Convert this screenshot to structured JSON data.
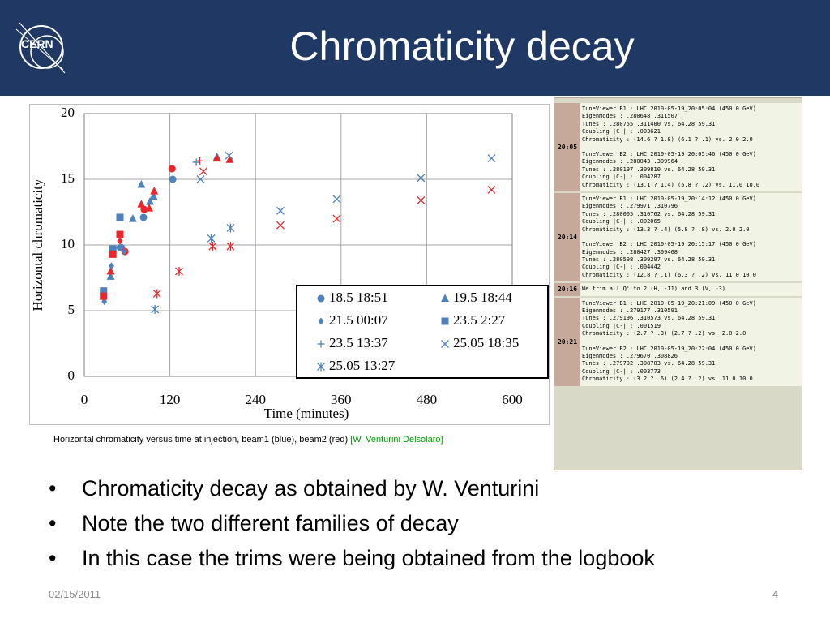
{
  "header": {
    "title": "Chromaticity decay",
    "logo_text": "CERN"
  },
  "chart_data": {
    "type": "scatter",
    "x_label": "Time (minutes)",
    "y_label": "Horizontal chromaticity",
    "xlim": [
      0,
      600
    ],
    "xticks": [
      0,
      120,
      240,
      360,
      480,
      600
    ],
    "ylim": [
      0,
      20
    ],
    "yticks": [
      0,
      5,
      10,
      15,
      20
    ],
    "grid": true,
    "series": [
      {
        "name": "18.5 18:51",
        "marker": "circle",
        "color": "#4f81bd",
        "x": [
          83,
          52,
          124,
          84,
          57,
          123
        ],
        "values": [
          12.1,
          9.8,
          15.0,
          12.7,
          9.5,
          15.8
        ],
        "colors": [
          "#4f81bd",
          "#4f81bd",
          "#4f81bd",
          "#e8262b",
          "#e8262b",
          "#e8262b"
        ]
      },
      {
        "name": "19.5 18:44",
        "marker": "triangle",
        "color": "#4f81bd",
        "x": [
          80,
          92,
          97,
          68,
          37,
          186,
          37,
          80,
          91,
          98,
          186,
          204
        ],
        "values": [
          14.6,
          13.3,
          13.7,
          12.0,
          7.6,
          16.7,
          8.0,
          13.1,
          12.8,
          14.1,
          16.6,
          16.5
        ],
        "colors": [
          "#4f81bd",
          "#4f81bd",
          "#4f81bd",
          "#4f81bd",
          "#4f81bd",
          "#4f81bd",
          "#e8262b",
          "#e8262b",
          "#e8262b",
          "#e8262b",
          "#e8262b",
          "#e8262b"
        ]
      },
      {
        "name": "21.5 00:07",
        "marker": "diamond",
        "color": "#4f81bd",
        "x": [
          28,
          38,
          48,
          56,
          50
        ],
        "values": [
          5.7,
          8.4,
          9.8,
          9.5,
          10.3
        ],
        "colors": [
          "#4f81bd",
          "#4f81bd",
          "#4f81bd",
          "#4f81bd",
          "#e8262b"
        ]
      },
      {
        "name": "23.5 2:27",
        "marker": "square",
        "color": "#4f81bd",
        "x": [
          27,
          40,
          50,
          27,
          40,
          50
        ],
        "values": [
          6.5,
          9.7,
          12.1,
          6.1,
          9.3,
          10.8
        ],
        "colors": [
          "#4f81bd",
          "#4f81bd",
          "#4f81bd",
          "#e8262b",
          "#e8262b",
          "#e8262b"
        ]
      },
      {
        "name": "23.5 13:37",
        "marker": "plus",
        "color": "#4f81bd",
        "x": [
          157,
          162
        ],
        "values": [
          16.3,
          16.4
        ],
        "colors": [
          "#4f81bd",
          "#e8262b"
        ]
      },
      {
        "name": "25.05 18:35",
        "marker": "x",
        "color": "#4f81bd",
        "x": [
          163,
          203,
          275,
          354,
          472,
          571,
          167,
          275,
          354,
          472,
          571
        ],
        "values": [
          15.0,
          16.8,
          12.6,
          13.5,
          15.1,
          16.6,
          15.6,
          11.5,
          12.0,
          13.4,
          14.2
        ],
        "colors": [
          "#4f81bd",
          "#4f81bd",
          "#4f81bd",
          "#4f81bd",
          "#4f81bd",
          "#4f81bd",
          "#e8262b",
          "#e8262b",
          "#e8262b",
          "#e8262b",
          "#e8262b"
        ]
      },
      {
        "name": "25.05 13:27",
        "marker": "asterisk",
        "color": "#4f81bd",
        "x": [
          99,
          178,
          205,
          102,
          133,
          180,
          205
        ],
        "values": [
          5.1,
          10.5,
          11.3,
          6.3,
          8.0,
          9.9,
          9.9
        ],
        "colors": [
          "#4f81bd",
          "#4f81bd",
          "#4f81bd",
          "#e8262b",
          "#e8262b",
          "#e8262b",
          "#e8262b"
        ]
      }
    ]
  },
  "caption": {
    "text": "Horizontal chromaticity versus time at injection, beam1 (blue), beam2 (red) ",
    "credit": "[W. Venturini Delsolaro]"
  },
  "logbook": [
    {
      "time": "20:05",
      "blocks": [
        [
          "TuneViewer B1 : LHC 2010-05-19_20:05:04 (450.0 GeV)",
          "Eigenmodes : .280648 .311507",
          "Tunes : .280755 .311400 vs. 64.28 59.31",
          "Coupling |C-| : .003621",
          "Chromaticity : (14.6 ? 1.8) (6.1 ? .1) vs. 2.0 2.0"
        ],
        [
          "TuneViewer B2 : LHC 2010-05-19_20:05:46 (450.0 GeV)",
          "Eigenmodes : .280043 .309964",
          "Tunes : .280197 .309810 vs. 64.28 59.31",
          "Coupling |C-| : .004287",
          "Chromaticity : (13.1 ? 1.4) (5.8 ? .2) vs. 11.0 10.0"
        ]
      ]
    },
    {
      "time": "20:14",
      "blocks": [
        [
          "TuneViewer B1 : LHC 2010-05-19_20:14:12 (450.0 GeV)",
          "Eigenmodes : .279971 .310796",
          "Tunes : .280005 .310762 vs. 64.28 59.31",
          "Coupling |C-| : .002065",
          "Chromaticity : (13.3 ? .4) (5.8 ? .8) vs. 2.0 2.0"
        ],
        [
          "TuneViewer B2 : LHC 2010-05-19_20:15:17 (450.0 GeV)",
          "Eigenmodes : .280427 .309468",
          "Tunes : .280598 .309297 vs. 64.28 59.31",
          "Coupling |C-| : .004442",
          "Chromaticity : (12.8 ? .1) (6.3 ? .2) vs. 11.0 10.0"
        ]
      ]
    },
    {
      "time": "20:16",
      "blocks": [
        [
          "We trim all Q' to 2 (H, -11) and 3 (V, -3)"
        ]
      ]
    },
    {
      "time": "20:21",
      "blocks": [
        [
          "TuneViewer B1 : LHC 2010-05-19_20:21:09 (450.0 GeV)",
          "Eigenmodes : .279177 .310591",
          "Tunes : .279196 .310573 vs. 64.28 59.31",
          "Coupling |C-| : .001519",
          "Chromaticity : (2.7 ? .3) (2.7 ? .2) vs. 2.0 2.0"
        ],
        [
          "TuneViewer B2 : LHC 2010-05-19_20:22:04 (450.0 GeV)",
          "Eigenmodes : .279670 .308826",
          "Tunes : .279792 .308703 vs. 64.28 59.31",
          "Coupling |C-| : .003773",
          "Chromaticity : (3.2 ? .6) (2.4 ? .2) vs. 11.0 10.0"
        ]
      ]
    }
  ],
  "bullets": [
    "Chromaticity decay as obtained by W. Venturini",
    "Note the two different families of decay",
    "In this case the trims were being obtained from the logbook"
  ],
  "footer": {
    "date": "02/15/2011",
    "page": "4"
  }
}
